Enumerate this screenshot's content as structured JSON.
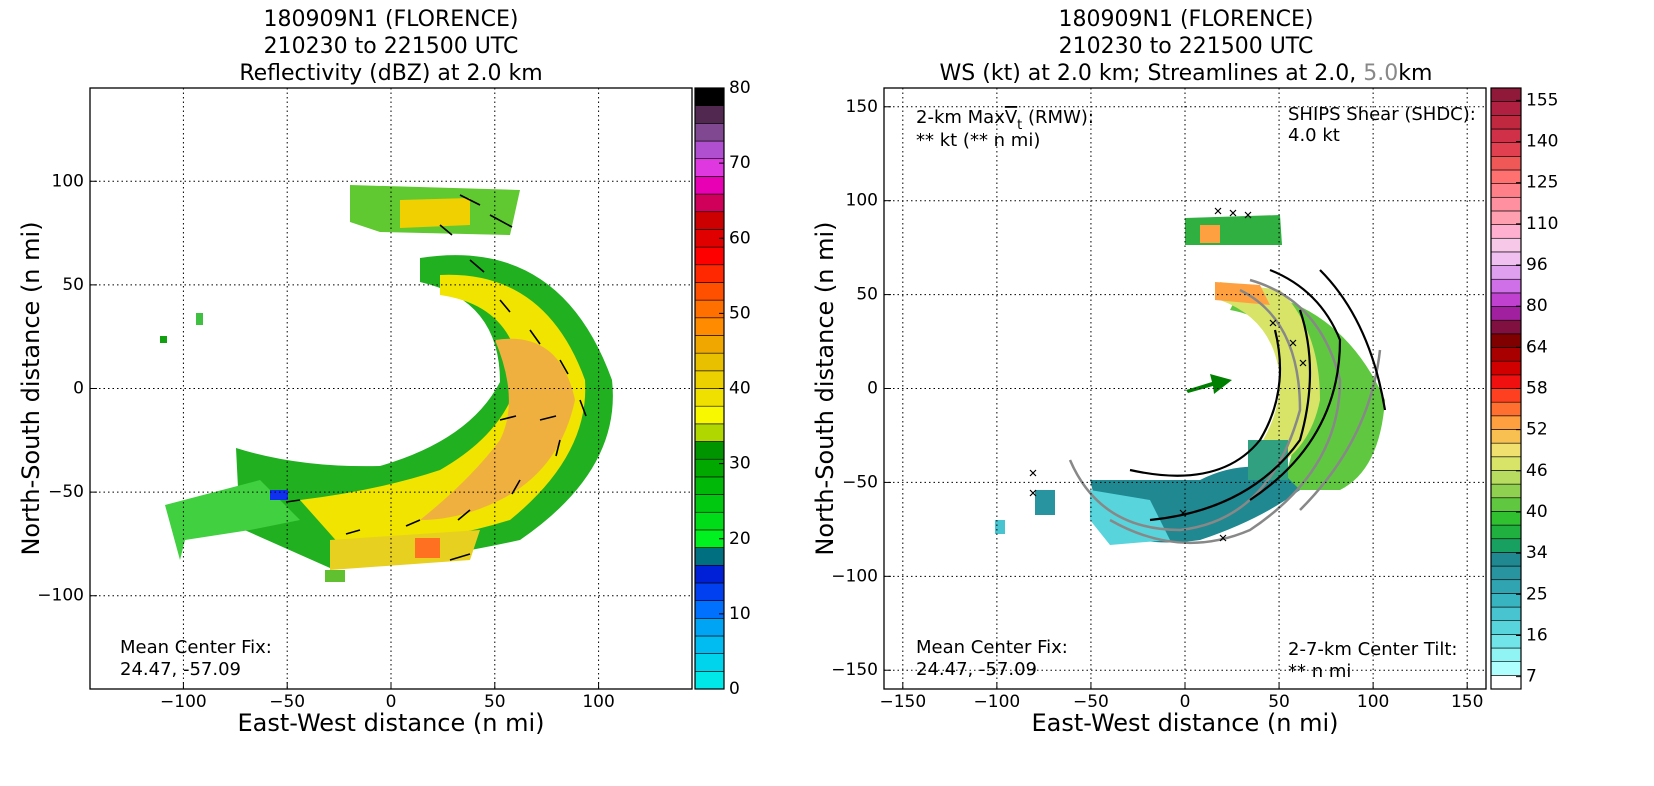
{
  "chart_data": [
    {
      "type": "heatmap",
      "title": [
        "180909N1 (FLORENCE)",
        "210230 to 221500 UTC",
        "Reflectivity (dBZ) at 2.0 km"
      ],
      "xlabel": "East-West distance (n mi)",
      "ylabel": "North-South distance (n mi)",
      "xlim": [
        -145,
        145
      ],
      "ylim": [
        -145,
        145
      ],
      "xticks": [
        {
          "value": -100,
          "label": "−100"
        },
        {
          "value": -50,
          "label": "−50"
        },
        0,
        50,
        100
      ],
      "yticks": [
        {
          "value": -100,
          "label": "−100"
        },
        {
          "value": -50,
          "label": "−50"
        },
        0,
        50,
        100
      ],
      "grid": true,
      "colorbar": {
        "lim": [
          0,
          80
        ],
        "ticks": [
          0,
          10,
          20,
          30,
          40,
          50,
          60,
          70,
          80
        ],
        "colors": [
          "#00e8e8",
          "#00d4ec",
          "#00bcf0",
          "#00a4f4",
          "#0070ff",
          "#0040f0",
          "#0020d8",
          "#007080",
          "#00f020",
          "#00dc18",
          "#00c810",
          "#00b808",
          "#00a800",
          "#009400",
          "#b0d800",
          "#f8f800",
          "#f0e000",
          "#ecd000",
          "#e8c000",
          "#f0a800",
          "#ff8c00",
          "#ff7000",
          "#ff5000",
          "#ff2800",
          "#ff0000",
          "#e00000",
          "#cc0000",
          "#d0005a",
          "#e800b4",
          "#e038e0",
          "#b050d0",
          "#804890",
          "#502850",
          "#000000"
        ]
      },
      "annotations": [
        {
          "text": "Mean Center Fix:"
        },
        {
          "text": "24.47, -57.09"
        }
      ]
    },
    {
      "type": "heatmap",
      "title": [
        "180909N1 (FLORENCE)",
        "210230 to 221500 UTC",
        [
          "WS (kt) at 2.0 km; Streamlines at 2.0, ",
          "5.0",
          "km"
        ]
      ],
      "xlabel": "East-West distance (n mi)",
      "ylabel": "North-South distance (n mi)",
      "xlim": [
        -160,
        160
      ],
      "ylim": [
        -160,
        160
      ],
      "xticks": [
        {
          "value": -150,
          "label": "−150"
        },
        {
          "value": -100,
          "label": "−100"
        },
        {
          "value": -50,
          "label": "−50"
        },
        0,
        50,
        100,
        150
      ],
      "yticks": [
        {
          "value": -150,
          "label": "−150"
        },
        {
          "value": -100,
          "label": "−100"
        },
        {
          "value": -50,
          "label": "−50"
        },
        0,
        50,
        100,
        150
      ],
      "grid": true,
      "colorbar": {
        "ticks": [
          7,
          16,
          25,
          34,
          40,
          46,
          52,
          58,
          64,
          80,
          96,
          110,
          125,
          140,
          155
        ],
        "colors": [
          "#ffffff",
          "#b0ffff",
          "#90f4f4",
          "#70e4e8",
          "#58d4dc",
          "#48c4d0",
          "#38b4c0",
          "#30a4b0",
          "#2894a0",
          "#208890",
          "#18a060",
          "#20b040",
          "#30c030",
          "#60c840",
          "#90d050",
          "#b8dc60",
          "#d8e468",
          "#f0e070",
          "#f8c050",
          "#ffa040",
          "#ff7030",
          "#ff4020",
          "#f01010",
          "#d00000",
          "#a80000",
          "#800000",
          "#801040",
          "#a020a0",
          "#c040d0",
          "#d070e8",
          "#e0a0f0",
          "#f0c0f0",
          "#f8c8e8",
          "#ffb0d0",
          "#ffa0b0",
          "#ff90a0",
          "#ff8088",
          "#ff7070",
          "#f05858",
          "#e04050",
          "#d03048",
          "#c02840",
          "#b02040",
          "#901838"
        ]
      },
      "annotations": [
        {
          "parts": [
            "2-km Max",
            "V",
            "t",
            " (RMW):"
          ]
        },
        {
          "text": "** kt (** n mi)"
        },
        {
          "text": "SHIPS Shear (SHDC):",
          "color": "#008000"
        },
        {
          "text": "4.0 kt",
          "color": "#008000"
        },
        {
          "text": "Mean Center Fix:"
        },
        {
          "text": "24.47, -57.09"
        },
        {
          "text": "2-7-km Center Tilt:",
          "color": "#ff0000"
        },
        {
          "text": "** n mi",
          "color": "#ff0000"
        }
      ]
    }
  ]
}
